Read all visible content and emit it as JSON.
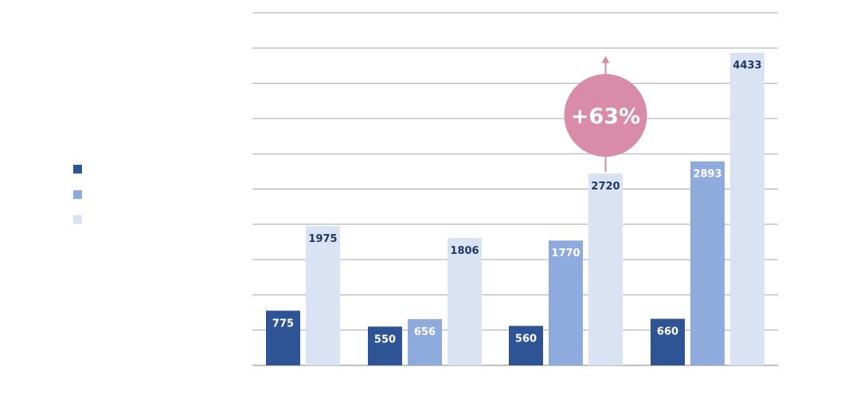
{
  "chart_data": {
    "type": "bar",
    "title": "",
    "xlabel": "",
    "ylabel": "",
    "ylim": [
      0,
      5000
    ],
    "grid": true,
    "legend_position": "left",
    "groups": [
      {
        "bars": [
          {
            "series": 0,
            "value": 775,
            "label": "775"
          },
          {
            "series": 2,
            "value": 1975,
            "label": "1975"
          }
        ]
      },
      {
        "bars": [
          {
            "series": 0,
            "value": 550,
            "label": "550"
          },
          {
            "series": 1,
            "value": 656,
            "label": "656"
          },
          {
            "series": 2,
            "value": 1806,
            "label": "1806"
          }
        ]
      },
      {
        "bars": [
          {
            "series": 0,
            "value": 560,
            "label": "560"
          },
          {
            "series": 1,
            "value": 1770,
            "label": "1770"
          },
          {
            "series": 2,
            "value": 2720,
            "label": "2720"
          }
        ]
      },
      {
        "bars": [
          {
            "series": 0,
            "value": 660,
            "label": "660"
          },
          {
            "series": 1,
            "value": 2893,
            "label": "2893"
          },
          {
            "series": 2,
            "value": 4433,
            "label": "4433"
          }
        ]
      }
    ],
    "series": [
      {
        "color": "#2f5496"
      },
      {
        "color": "#8faadc"
      },
      {
        "color": "#dae3f3"
      }
    ],
    "annotation": {
      "text": "+63%",
      "color": "#d98ca8",
      "from_group": 2,
      "to_group": 3
    }
  }
}
